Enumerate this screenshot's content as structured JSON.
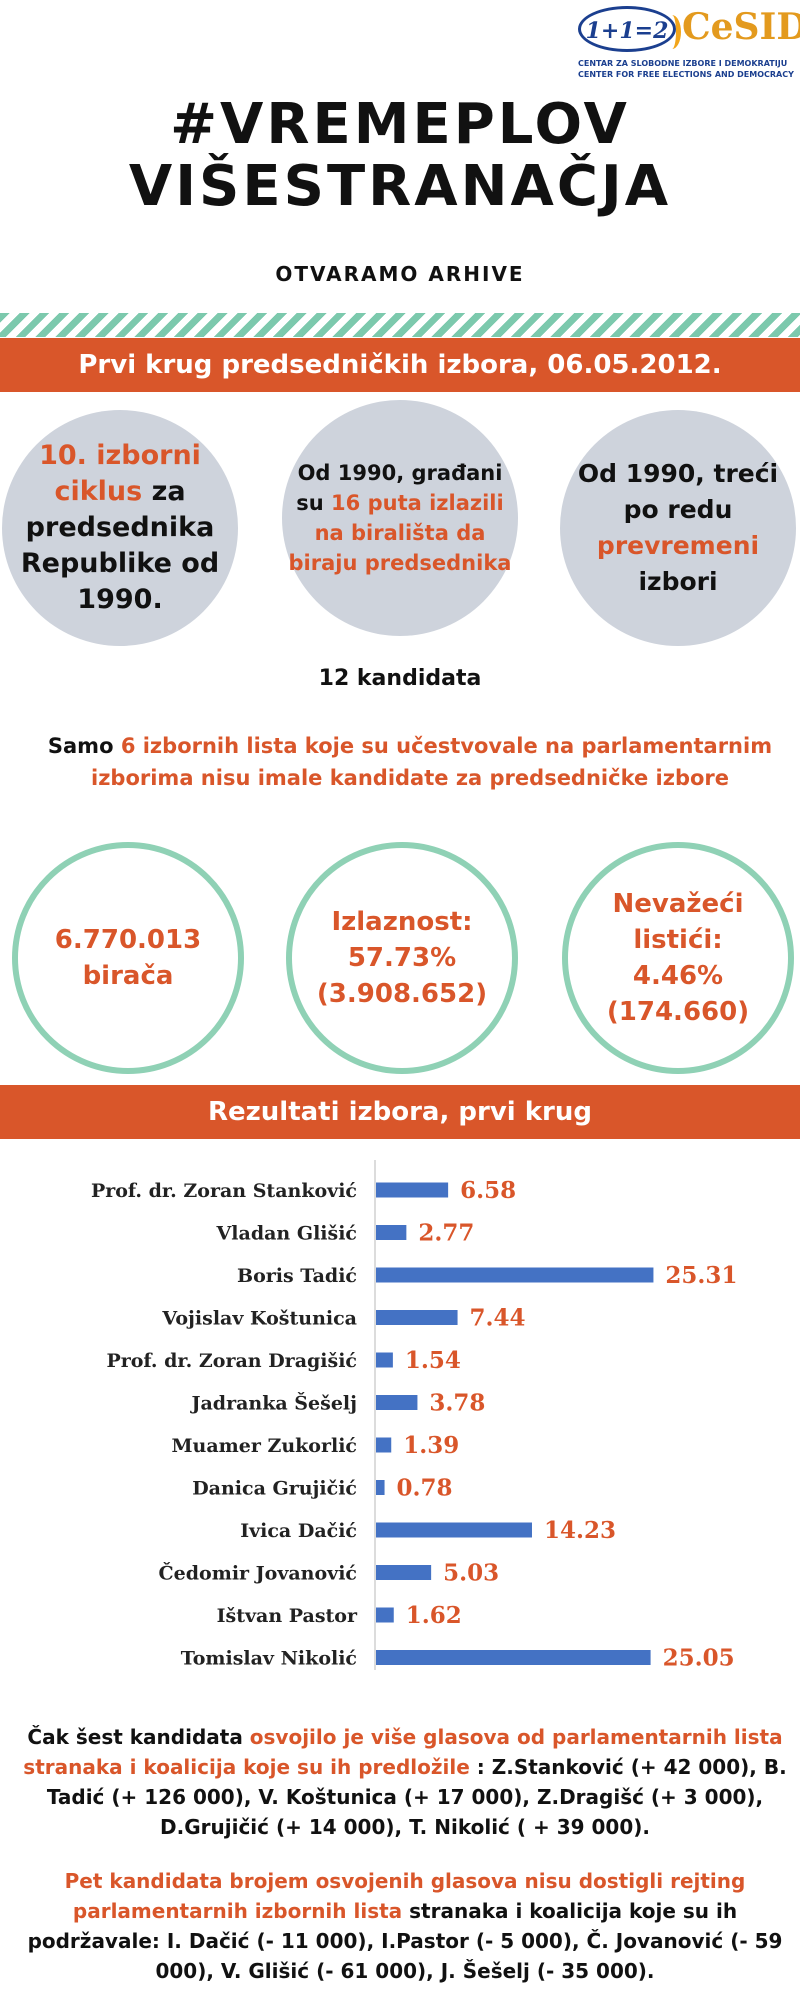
{
  "logo": {
    "badge": "1+1=2",
    "name": "CeSID",
    "subtitle_line1": "CENTAR ZA SLOBODNE IZBORE I DEMOKRATIJU",
    "subtitle_line2": "CENTER FOR FREE ELECTIONS AND DEMOCRACY"
  },
  "title_line1": "#VREMEPLOV",
  "title_line2": "VIŠESTRANAČJA",
  "subtitle": "OTVARAMO ARHIVE",
  "banner1": "Prvi krug predsedničkih izbora, 06.05.2012.",
  "circles_gray": [
    {
      "part1": "10. izborni ciklus",
      "part2": " za predsednika Republike od 1990."
    },
    {
      "part1": "Od 1990, građani su ",
      "part2": "16 puta izlazili na birališta da biraju predsednika"
    },
    {
      "part1": "Od 1990, treći po redu ",
      "part2": "prevremeni",
      "part3": " izbori"
    }
  ],
  "candidates_count": "12 kandidata",
  "note": {
    "part1": "Samo ",
    "part2": "6 izbornih lista koje su učestvovale na parlamentarnim izborima nisu imale kandidate za predsedničke izbore"
  },
  "circles_stats": [
    {
      "line1": "6.770.013",
      "line2": "birača",
      "line3": ""
    },
    {
      "line1": "Izlaznost:",
      "line2": "57.73%",
      "line3": "(3.908.652)"
    },
    {
      "line1": "Nevažeći listići:",
      "line2": "4.46%",
      "line3": "(174.660)"
    }
  ],
  "banner2": "Rezultati izbora, prvi krug",
  "chart_data": {
    "type": "bar",
    "orientation": "horizontal",
    "categories": [
      "Prof. dr. Zoran Stanković",
      "Vladan Glišić",
      "Boris Tadić",
      "Vojislav Koštunica",
      "Prof. dr. Zoran Dragišić",
      "Jadranka Šešelj",
      "Muamer Zukorlić",
      "Danica Grujičić",
      "Ivica Dačić",
      "Čedomir Jovanović",
      "Ištvan Pastor",
      "Tomislav Nikolić"
    ],
    "values": [
      6.58,
      2.77,
      25.31,
      7.44,
      1.54,
      3.78,
      1.39,
      0.78,
      14.23,
      5.03,
      1.62,
      25.05
    ],
    "value_labels": [
      "6.58",
      "2.77",
      "25.31",
      "7.44",
      "1.54",
      "3.78",
      "1.39",
      "0.78",
      "14.23",
      "5.03",
      "1.62",
      "25.05"
    ],
    "xlim": [
      0,
      26
    ],
    "bar_color": "#4472c4",
    "label_color": "#d9562a",
    "grid": false
  },
  "para1": {
    "part1": "Čak šest kandidata ",
    "part2": "osvojilo je više glasova od parlamentarnih lista stranaka i koalicija koje su ih predložile",
    "part3": " : Z.Stanković (+ 42 000), B. Tadić (+ 126 000), V. Koštunica (+ 17 000), Z.Dragišć (+ 3 000), D.Grujičić (+ 14 000), T. Nikolić ( + 39 000)."
  },
  "para2": {
    "part1": "Pet kandidata brojem osvojenih glasova nisu dostigli rejting parlamentarnih izbornih lista",
    "part2": " stranaka i koalicija koje su ih podržavale: I. Dačić (- 11 000), I.Pastor (- 5 000), Č. Jovanović (- 59 000), V. Glišić (- 61 000), J. Šešelj (- 35 000)."
  },
  "colors": {
    "accent": "#d9562a",
    "stripe": "#7cc9ad",
    "circle_gray": "#ced3dc",
    "circle_ring": "#8fd1b5",
    "bar": "#4472c4"
  }
}
